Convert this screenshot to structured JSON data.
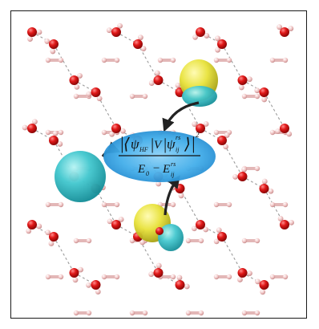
{
  "formula": {
    "psi_hf_main": "ψ",
    "psi_hf_sub": "HF",
    "operator": "V",
    "psi_ij_main": "ψ",
    "psi_ij_sup": "rs",
    "psi_ij_sub": "ij",
    "exponent": "2",
    "denom_e0_main": "E",
    "denom_e0_sub": "0",
    "minus": "−",
    "denom_e_main": "E",
    "denom_e_sup": "rs",
    "denom_e_sub": "ij"
  },
  "colors": {
    "oxygen": "#d21414",
    "hydrogen": "#f2c6c6",
    "bond_dash": "#9a9a9a",
    "orbital_cyan": "#3cc4cc",
    "orbital_yellow": "#e8e23a",
    "formula_blob": "#3ba8e8",
    "arrow": "#222222",
    "frame": "#1a1a1a"
  }
}
